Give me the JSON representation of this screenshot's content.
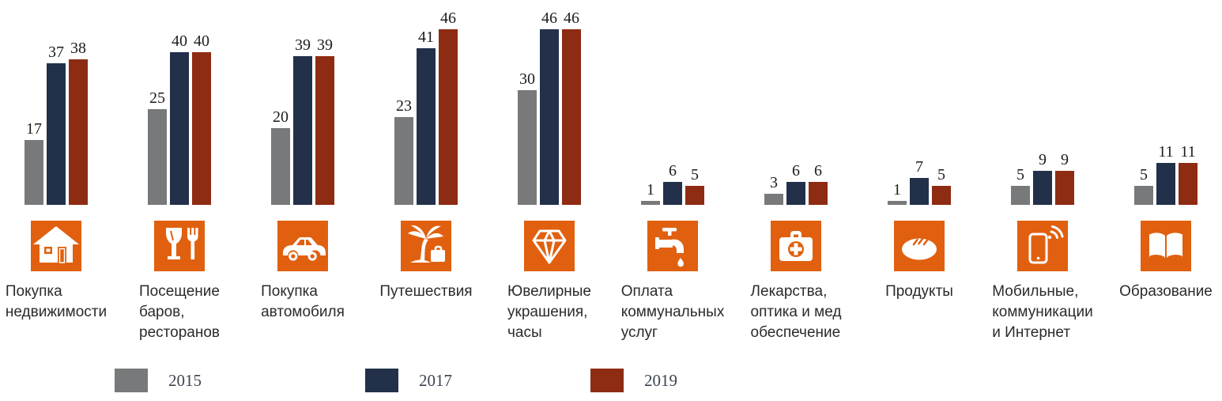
{
  "chart_data": {
    "type": "bar",
    "title": "",
    "xlabel": "",
    "ylabel": "",
    "ylim": [
      0,
      46
    ],
    "grid": false,
    "legend_position": "bottom",
    "value_labels": true,
    "categories": [
      "Покупка\nнедвижимости",
      "Посещение\nбаров,\nресторанов",
      "Покупка\nавтомобиля",
      "Путешествия",
      "Ювелирные\nукрашения,\nчасы",
      "Оплата\nкоммунальных\nуслуг",
      "Лекарства,\nоптика и мед\nобеспечение",
      "Продукты",
      "Мобильные,\nкоммуникации\nи Интернет",
      "Образование"
    ],
    "series": [
      {
        "name": "2015",
        "color": "#77797a",
        "values": [
          17,
          25,
          20,
          23,
          30,
          1,
          3,
          1,
          5,
          5
        ]
      },
      {
        "name": "2017",
        "color": "#22304a",
        "values": [
          37,
          40,
          39,
          41,
          46,
          6,
          6,
          7,
          9,
          11
        ]
      },
      {
        "name": "2019",
        "color": "#8e2b13",
        "values": [
          38,
          40,
          39,
          46,
          46,
          5,
          6,
          5,
          9,
          11
        ]
      }
    ]
  },
  "icons": [
    "house-icon",
    "wine-glass-fork-icon",
    "car-icon",
    "palm-tree-suitcase-icon",
    "diamond-icon",
    "water-tap-icon",
    "first-aid-kit-icon",
    "bread-icon",
    "phone-wifi-icon",
    "open-book-icon"
  ],
  "icon_background_color": "#e0600f",
  "legend": {
    "items": [
      {
        "label": "2015",
        "color": "#77797a"
      },
      {
        "label": "2017",
        "color": "#22304a"
      },
      {
        "label": "2019",
        "color": "#8e2b13"
      }
    ]
  }
}
